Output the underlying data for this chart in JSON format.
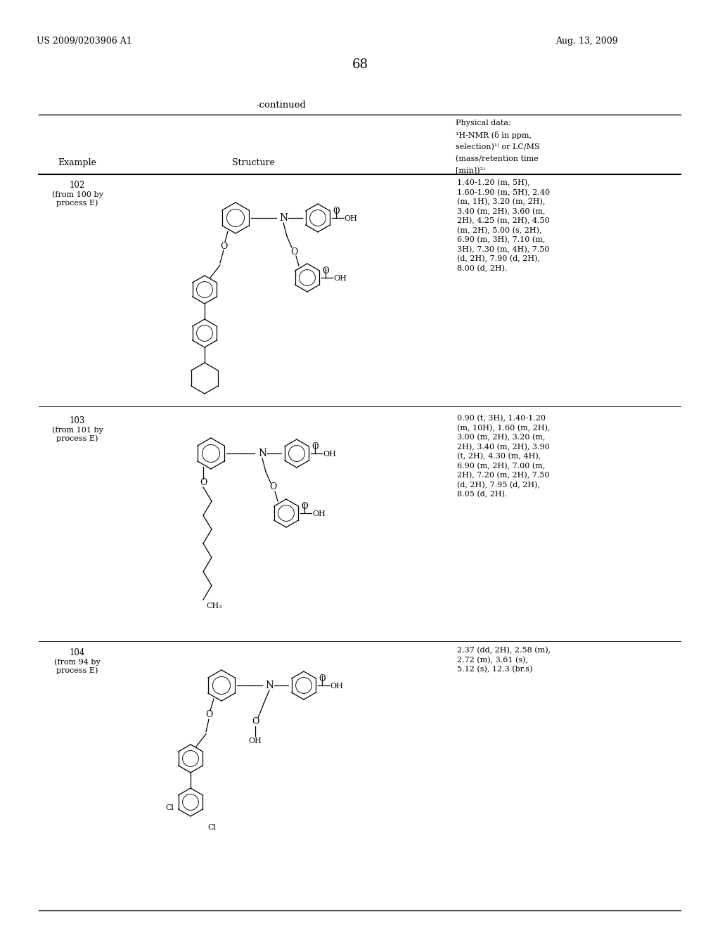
{
  "bg_color": "#ffffff",
  "patent_number": "US 2009/0203906 A1",
  "patent_date": "Aug. 13, 2009",
  "page_number": "68",
  "continued_text": "-continued",
  "header_example": "Example",
  "header_structure": "Structure",
  "header_physical": [
    "Physical data:",
    "¹H-NMR (δ in ppm,",
    "selection)¹⁾ or LC/MS",
    "(mass/retention time",
    "[min])²⁾"
  ],
  "examples": [
    {
      "id": "102",
      "source_line1": "(from 100 by",
      "source_line2": "process E)",
      "nmr_lines": [
        "1.40-1.20 (m, 5H),",
        "1.60-1.90 (m, 5H), 2.40",
        "(m, 1H), 3.20 (m, 2H),",
        "3.40 (m, 2H), 3.60 (m,",
        "2H), 4.25 (m, 2H), 4.50",
        "(m, 2H), 5.00 (s, 2H),",
        "6.90 (m, 3H), 7.10 (m,",
        "3H), 7.30 (m, 4H), 7.50",
        "(d, 2H), 7.90 (d, 2H),",
        "8.00 (d, 2H)."
      ]
    },
    {
      "id": "103",
      "source_line1": "(from 101 by",
      "source_line2": "process E)",
      "nmr_lines": [
        "0.90 (t, 3H), 1.40-1.20",
        "(m, 10H), 1.60 (m, 2H),",
        "3.00 (m, 2H), 3.20 (m,",
        "2H), 3.40 (m, 2H), 3.90",
        "(t, 2H), 4.30 (m, 4H),",
        "6.90 (m, 2H), 7.00 (m,",
        "2H), 7.20 (m, 2H), 7.50",
        "(d, 2H), 7.95 (d, 2H),",
        "8.05 (d, 2H)."
      ]
    },
    {
      "id": "104",
      "source_line1": "(from 94 by",
      "source_line2": "process E)",
      "nmr_lines": [
        "2.37 (dd, 2H), 2.58 (m),",
        "2.72 (m), 3.61 (s),",
        "5.12 (s), 12.3 (br.s)"
      ]
    }
  ]
}
